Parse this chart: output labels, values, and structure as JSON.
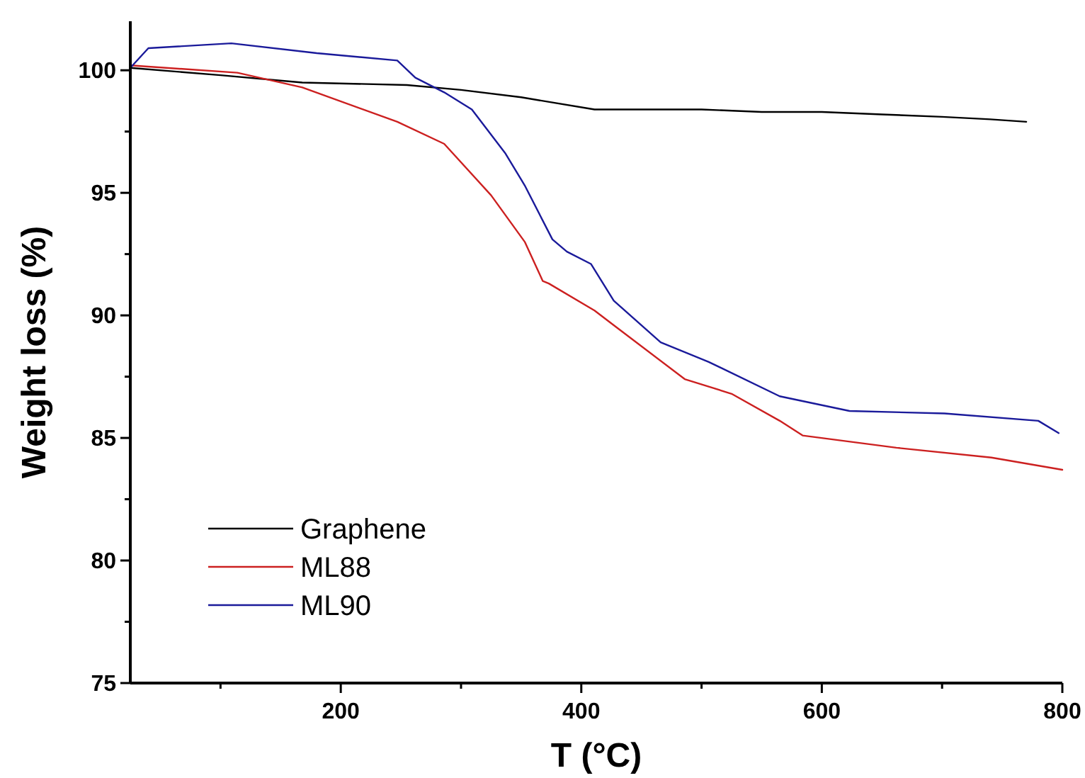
{
  "chart_data": {
    "type": "line",
    "xlabel": "T (°C)",
    "ylabel": "Weight loss (%)",
    "xlim": [
      25,
      800
    ],
    "ylim": [
      75,
      102
    ],
    "xticks": [
      {
        "value": 100,
        "label": null
      },
      200,
      {
        "value": 300,
        "label": null
      },
      400,
      {
        "value": 500,
        "label": null
      },
      600,
      {
        "value": 700,
        "label": null
      },
      800
    ],
    "yticks": [
      75,
      {
        "value": 77.5,
        "label": null
      },
      80,
      {
        "value": 82.5,
        "label": null
      },
      85,
      {
        "value": 87.5,
        "label": null
      },
      90,
      {
        "value": 92.5,
        "label": null
      },
      95,
      {
        "value": 97.5,
        "label": null
      },
      100
    ],
    "legend": "bottom left",
    "grid": false,
    "marker": "none",
    "line_style": "solid",
    "series": [
      {
        "name": "Graphene",
        "color": "#000000",
        "x": [
          25,
          100,
          168,
          255,
          300,
          350,
          411,
          450,
          500,
          550,
          600,
          650,
          700,
          740,
          770
        ],
        "values": [
          100.1,
          99.8,
          99.5,
          99.4,
          99.2,
          98.9,
          98.4,
          98.4,
          98.4,
          98.3,
          98.3,
          98.2,
          98.1,
          98.0,
          97.9
        ]
      },
      {
        "name": "ML88",
        "color": "#cc2020",
        "x": [
          25,
          114,
          168,
          247,
          286,
          325,
          353,
          368,
          373,
          411,
          427,
          486,
          525,
          565,
          584,
          662,
          741,
          800
        ],
        "values": [
          100.2,
          99.9,
          99.3,
          97.9,
          97.0,
          94.9,
          93.0,
          91.4,
          91.3,
          90.2,
          89.6,
          87.4,
          86.8,
          85.7,
          85.1,
          84.6,
          84.2,
          83.7
        ]
      },
      {
        "name": "ML90",
        "color": "#1a1a9a",
        "x": [
          25,
          40,
          109,
          180,
          247,
          262,
          286,
          309,
          337,
          353,
          376,
          388,
          408,
          427,
          466,
          506,
          565,
          623,
          702,
          780,
          797
        ],
        "values": [
          100.1,
          100.9,
          101.1,
          100.7,
          100.4,
          99.7,
          99.1,
          98.4,
          96.6,
          95.3,
          93.1,
          92.6,
          92.1,
          90.6,
          88.9,
          88.1,
          86.7,
          86.1,
          86.0,
          85.7,
          85.2
        ]
      }
    ]
  }
}
